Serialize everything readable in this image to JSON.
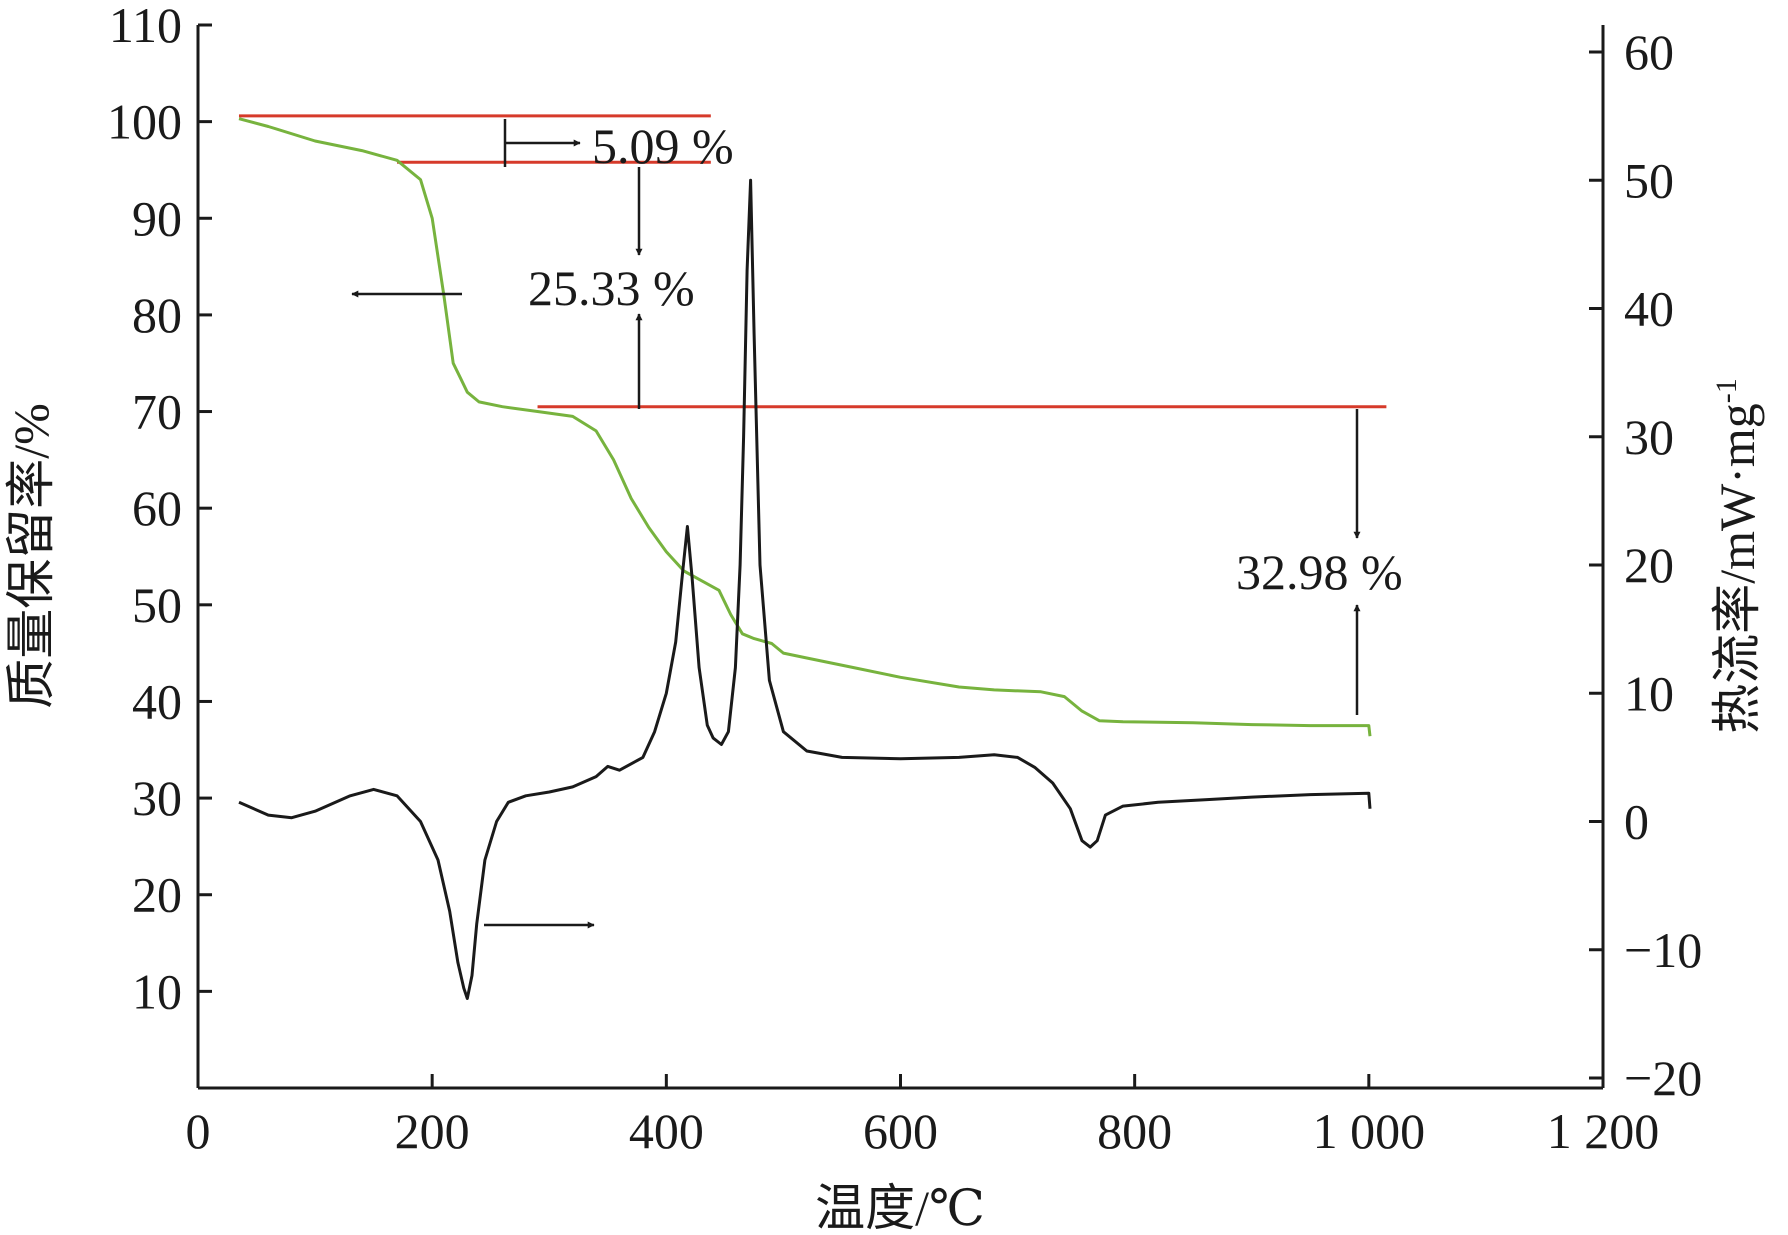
{
  "chart_data": {
    "type": "line",
    "xlabel": "温度/℃",
    "ylabel_left": "质量保留率/%",
    "ylabel_right": "热流率/mW·mg",
    "ylabel_right_superscript": "-1",
    "xlim": [
      0,
      1200
    ],
    "ylim_left": [
      0,
      110
    ],
    "ylim_right": [
      -20,
      60
    ],
    "x_ticks": [
      0,
      200,
      400,
      600,
      800,
      1000,
      1200
    ],
    "x_tick_labels": [
      "0",
      "200",
      "400",
      "600",
      "800",
      "1 000",
      "1 200"
    ],
    "y_left_ticks": [
      10,
      20,
      30,
      40,
      50,
      60,
      70,
      80,
      90,
      100,
      110
    ],
    "y_left_tick_labels": [
      "10",
      "20",
      "30",
      "40",
      "50",
      "60",
      "70",
      "80",
      "90",
      "100",
      "110"
    ],
    "y_right_ticks": [
      -20,
      -10,
      0,
      10,
      20,
      30,
      40,
      50,
      60
    ],
    "y_right_tick_labels": [
      "−20",
      "−10",
      "0",
      "10",
      "20",
      "30",
      "40",
      "50",
      "60"
    ],
    "grid": false,
    "series": [
      {
        "axis": "left",
        "color": "#77b33e",
        "x": [
          35,
          60,
          100,
          140,
          170,
          190,
          200,
          210,
          218,
          224,
          230,
          240,
          260,
          290,
          320,
          340,
          355,
          370,
          385,
          400,
          415,
          430,
          445,
          455,
          465,
          475,
          490,
          500,
          520,
          560,
          600,
          650,
          680,
          720,
          740,
          755,
          770,
          790,
          850,
          900,
          950,
          1000,
          1001
        ],
        "values": [
          100.3,
          99.5,
          98.0,
          97.0,
          96.0,
          94.0,
          90.0,
          82.0,
          75.0,
          73.5,
          72.0,
          71.0,
          70.5,
          70.0,
          69.5,
          68.0,
          65.0,
          61.0,
          58.0,
          55.5,
          53.5,
          52.5,
          51.5,
          49.0,
          47.0,
          46.5,
          46.0,
          45.0,
          44.5,
          43.5,
          42.5,
          41.5,
          41.2,
          41.0,
          40.5,
          39.0,
          38.0,
          37.9,
          37.8,
          37.6,
          37.5,
          37.5,
          36.4
        ]
      },
      {
        "axis": "right",
        "color": "#1a1a1a",
        "x": [
          35,
          60,
          80,
          100,
          130,
          150,
          170,
          190,
          205,
          215,
          222,
          227,
          230,
          234,
          238,
          245,
          255,
          265,
          280,
          300,
          320,
          340,
          350,
          360,
          370,
          380,
          390,
          400,
          408,
          414,
          418,
          422,
          428,
          435,
          440,
          447,
          453,
          459,
          463,
          466,
          469,
          472,
          475,
          480,
          488,
          500,
          520,
          550,
          600,
          650,
          680,
          700,
          715,
          730,
          745,
          755,
          762,
          768,
          775,
          790,
          820,
          860,
          900,
          950,
          1000,
          1001
        ],
        "values": [
          1.5,
          0.5,
          0.3,
          0.8,
          2.0,
          2.5,
          2.0,
          0.0,
          -3.0,
          -7.0,
          -11.0,
          -13.0,
          -13.8,
          -12.0,
          -8.0,
          -3.0,
          0.0,
          1.5,
          2.0,
          2.3,
          2.7,
          3.5,
          4.3,
          4.0,
          4.5,
          5.0,
          7.0,
          10.0,
          14.0,
          19.5,
          23.0,
          19.0,
          12.0,
          7.5,
          6.5,
          6.0,
          7.0,
          12.0,
          20.0,
          30.0,
          43.0,
          50.0,
          38.0,
          20.0,
          11.0,
          7.0,
          5.5,
          5.0,
          4.9,
          5.0,
          5.2,
          5.0,
          4.2,
          3.0,
          1.0,
          -1.5,
          -2.0,
          -1.5,
          0.5,
          1.2,
          1.5,
          1.7,
          1.9,
          2.1,
          2.2,
          1.0
        ]
      }
    ],
    "annotations": [
      {
        "text": "5.09 %"
      },
      {
        "text": "25.33 %"
      },
      {
        "text": "32.98 %"
      }
    ],
    "reference_lines": [
      {
        "axis": "left",
        "y": 100.6,
        "x_from": 35,
        "x_to": 438,
        "color": "#d63a2a"
      },
      {
        "axis": "left",
        "y": 95.8,
        "x_from": 170,
        "x_to": 438,
        "color": "#d63a2a"
      },
      {
        "axis": "left",
        "y": 70.5,
        "x_from": 290,
        "x_to": 1015,
        "color": "#d63a2a"
      }
    ]
  }
}
